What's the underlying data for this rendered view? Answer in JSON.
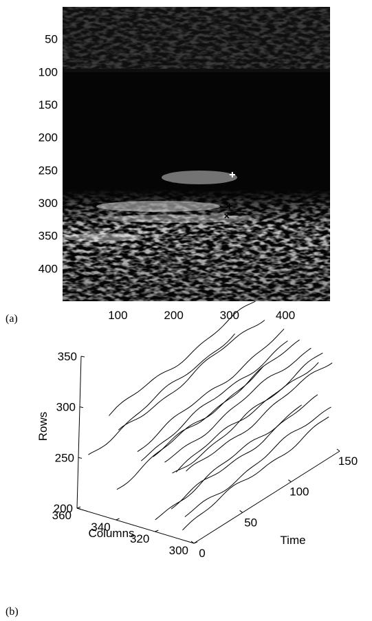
{
  "chart_data": [
    {
      "type": "heatmap",
      "panel_label": "(a)",
      "image": "grayscale ultrasound image",
      "xlim": [
        1,
        480
      ],
      "ylim": [
        1,
        450
      ],
      "x_ticks": [
        "100",
        "200",
        "300",
        "400"
      ],
      "y_ticks": [
        "50",
        "100",
        "150",
        "200",
        "250",
        "300",
        "350",
        "400"
      ],
      "markers": [
        {
          "symbol": "+",
          "color": "#ffffff",
          "x": 305,
          "y": 257
        },
        {
          "symbol": "+",
          "color": "#000000",
          "x": 300,
          "y": 305
        },
        {
          "symbol": "x",
          "color": "#000000",
          "x": 295,
          "y": 320
        }
      ]
    },
    {
      "type": "line",
      "panel_label": "(b)",
      "projection": "3d",
      "xlabel": "Time",
      "ylabel": "Columns",
      "zlabel": "Rows",
      "xlim": [
        0,
        150
      ],
      "ylim": [
        300,
        360
      ],
      "zlim": [
        200,
        350
      ],
      "x_ticks": [
        "0",
        "50",
        "100",
        "150"
      ],
      "y_ticks": [
        "300",
        "320",
        "340",
        "360"
      ],
      "z_ticks": [
        "200",
        "250",
        "300",
        "350"
      ],
      "series": [
        {
          "x": [
            0,
            150
          ],
          "col": 345,
          "rows": [
            300,
            322
          ]
        },
        {
          "x": [
            0,
            150
          ],
          "col": 340,
          "rows": [
            285,
            310
          ]
        },
        {
          "x": [
            0,
            150
          ],
          "col": 355,
          "rows": [
            255,
            285
          ]
        },
        {
          "x": [
            0,
            150
          ],
          "col": 330,
          "rows": [
            275,
            300
          ]
        },
        {
          "x": [
            0,
            150
          ],
          "col": 322,
          "rows": [
            272,
            296
          ]
        },
        {
          "x": [
            0,
            150
          ],
          "col": 316,
          "rows": [
            270,
            294
          ]
        },
        {
          "x": [
            0,
            150
          ],
          "col": 328,
          "rows": [
            268,
            292
          ]
        },
        {
          "x": [
            0,
            150
          ],
          "col": 310,
          "rows": [
            266,
            290
          ]
        },
        {
          "x": [
            0,
            150
          ],
          "col": 305,
          "rows": [
            265,
            287
          ]
        },
        {
          "x": [
            0,
            150
          ],
          "col": 312,
          "rows": [
            260,
            283
          ]
        },
        {
          "x": [
            0,
            150
          ],
          "col": 340,
          "rows": [
            232,
            258
          ]
        },
        {
          "x": [
            0,
            150
          ],
          "col": 312,
          "rows": [
            228,
            246
          ]
        },
        {
          "x": [
            0,
            150
          ],
          "col": 305,
          "rows": [
            222,
            242
          ]
        },
        {
          "x": [
            0,
            150
          ],
          "col": 320,
          "rows": [
            213,
            235
          ]
        },
        {
          "x": [
            0,
            150
          ],
          "col": 306,
          "rows": [
            212,
            229
          ]
        }
      ]
    }
  ]
}
